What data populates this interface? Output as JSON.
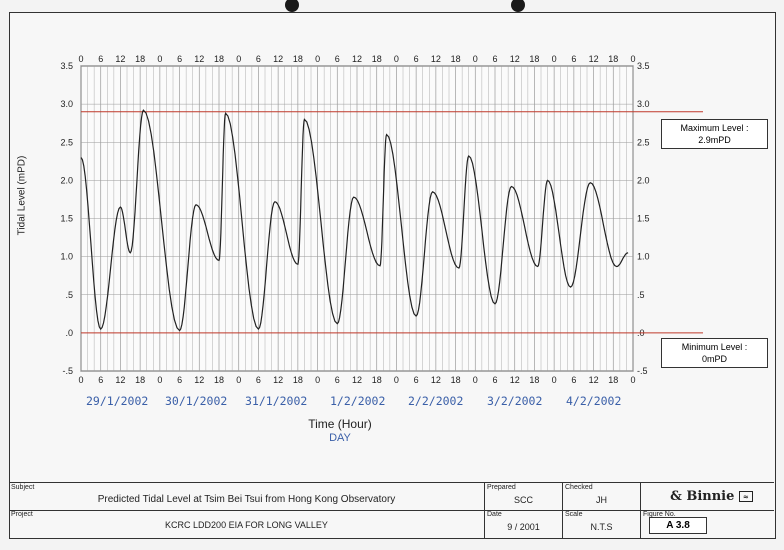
{
  "chart_data": {
    "type": "line",
    "ylabel": "Tidal Level (mPD)",
    "xlabel": "Time (Hour)",
    "xsublabel": "DAY",
    "ylim": [
      -0.5,
      3.5
    ],
    "yticks": [
      "3.5",
      "3.0",
      "2.5",
      "2.0",
      "1.5",
      "1.0",
      ".5",
      ".0",
      "-.5"
    ],
    "x_hour_ticks": [
      "0",
      "6",
      "12",
      "18"
    ],
    "days": [
      "29/1/2002",
      "30/1/2002",
      "31/1/2002",
      "1/2/2002",
      "2/2/2002",
      "3/2/2002",
      "4/2/2002"
    ],
    "grid": true,
    "series": [
      {
        "x": [
          0,
          6,
          12,
          15,
          19,
          30,
          35,
          42,
          44,
          54,
          59,
          66,
          68,
          78,
          83,
          91,
          93,
          102,
          107,
          115,
          118,
          126,
          131,
          139,
          142,
          149,
          155,
          163,
          166.5
        ],
        "y": [
          2.3,
          0.05,
          1.65,
          1.05,
          2.92,
          0.03,
          1.68,
          0.95,
          2.88,
          0.05,
          1.72,
          0.9,
          2.8,
          0.12,
          1.78,
          0.88,
          2.6,
          0.22,
          1.85,
          0.85,
          2.32,
          0.38,
          1.92,
          0.87,
          2.0,
          0.6,
          1.97,
          0.87,
          1.05
        ]
      }
    ],
    "reference_lines": [
      {
        "label": "Maximum Level :",
        "value_text": "2.9mPD",
        "y": 2.9
      },
      {
        "label": "Minimum Level :",
        "value_text": "0mPD",
        "y": 0.0
      }
    ]
  },
  "title_block": {
    "subject_label": "Subject",
    "subject": "Predicted Tidal Level at Tsim Bei Tsui from Hong Kong Observatory",
    "project_label": "Project",
    "project": "KCRC LDD200 EIA FOR LONG VALLEY",
    "prepared_label": "Prepared",
    "prepared": "SCC",
    "checked_label": "Checked",
    "checked": "JH",
    "date_label": "Date",
    "date": "9 / 2001",
    "scale_label": "Scale",
    "scale": "N.T.S",
    "figure_label": "Figure No.",
    "figure": "A 3.8",
    "logo": "Binnie"
  },
  "colors": {
    "curve": "#222222",
    "ref_line": "#c0392b",
    "grid": "#9a9a9a",
    "date_text": "#3a5fa8"
  }
}
